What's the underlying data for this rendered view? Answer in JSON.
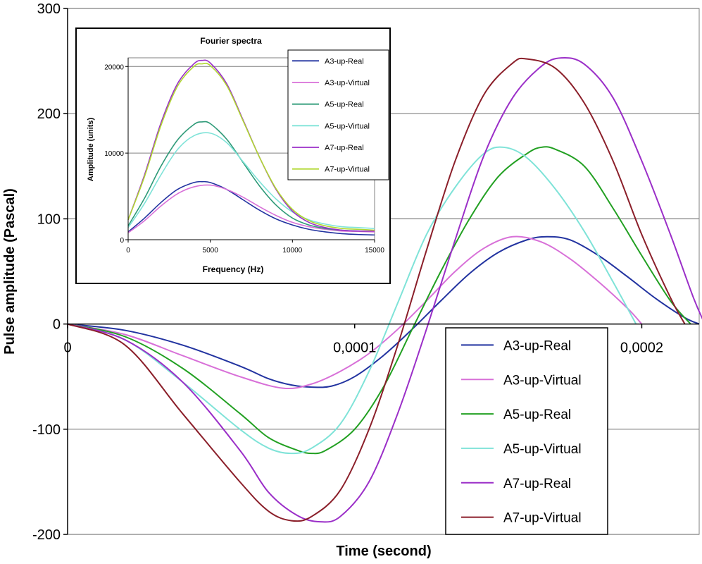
{
  "chart_data": [
    {
      "type": "line",
      "title": "",
      "xlabel": "Time (second)",
      "ylabel": "Pulse amplitude (Pascal)",
      "xlim": [
        0,
        0.00022
      ],
      "ylim": [
        -200,
        300
      ],
      "grid": "horizontal",
      "legend_position": "bottom-right",
      "x_tick_labels": [
        "0",
        "0,0001",
        "0,0002"
      ],
      "x_tick_values": [
        0,
        0.0001,
        0.0002
      ],
      "y_tick_labels": [
        "-200",
        "-100",
        "0",
        "100",
        "200",
        "300"
      ],
      "y_tick_values": [
        -200,
        -100,
        0,
        100,
        200,
        300
      ],
      "series": [
        {
          "name": "A3-up-Real",
          "color": "#2233a0",
          "points": [
            [
              0,
              0
            ],
            [
              2e-05,
              -6
            ],
            [
              4e-05,
              -20
            ],
            [
              6e-05,
              -40
            ],
            [
              7e-05,
              -52
            ],
            [
              7.8e-05,
              -58
            ],
            [
              8.5e-05,
              -60
            ],
            [
              9.2e-05,
              -59
            ],
            [
              0.0001,
              -50
            ],
            [
              0.00011,
              -30
            ],
            [
              0.00012,
              -5
            ],
            [
              0.00013,
              22
            ],
            [
              0.00014,
              48
            ],
            [
              0.00015,
              68
            ],
            [
              0.00016,
              80
            ],
            [
              0.000167,
              83
            ],
            [
              0.000175,
              80
            ],
            [
              0.000185,
              65
            ],
            [
              0.000195,
              45
            ],
            [
              0.000205,
              24
            ],
            [
              0.000215,
              6
            ],
            [
              0.00022,
              0
            ]
          ]
        },
        {
          "name": "A3-up-Virtual",
          "color": "#d870d8",
          "points": [
            [
              0,
              0
            ],
            [
              2e-05,
              -10
            ],
            [
              4e-05,
              -30
            ],
            [
              6e-05,
              -50
            ],
            [
              7.5e-05,
              -61
            ],
            [
              8.5e-05,
              -57
            ],
            [
              9.5e-05,
              -45
            ],
            [
              0.000105,
              -28
            ],
            [
              0.000115,
              -5
            ],
            [
              0.000125,
              22
            ],
            [
              0.000135,
              50
            ],
            [
              0.000145,
              72
            ],
            [
              0.000155,
              83
            ],
            [
              0.000165,
              78
            ],
            [
              0.000175,
              62
            ],
            [
              0.000185,
              40
            ],
            [
              0.000195,
              15
            ],
            [
              0.0002,
              0
            ]
          ]
        },
        {
          "name": "A5-up-Real",
          "color": "#22a022",
          "points": [
            [
              0,
              0
            ],
            [
              2e-05,
              -12
            ],
            [
              4e-05,
              -42
            ],
            [
              6e-05,
              -85
            ],
            [
              7e-05,
              -108
            ],
            [
              8e-05,
              -120
            ],
            [
              8.5e-05,
              -123
            ],
            [
              9e-05,
              -120
            ],
            [
              0.0001,
              -100
            ],
            [
              0.00011,
              -60
            ],
            [
              0.00012,
              -5
            ],
            [
              0.00013,
              50
            ],
            [
              0.00014,
              100
            ],
            [
              0.00015,
              140
            ],
            [
              0.00016,
              162
            ],
            [
              0.000165,
              168
            ],
            [
              0.00017,
              166
            ],
            [
              0.00018,
              150
            ],
            [
              0.00019,
              110
            ],
            [
              0.0002,
              65
            ],
            [
              0.00021,
              22
            ],
            [
              0.000217,
              0
            ]
          ]
        },
        {
          "name": "A5-up-Virtual",
          "color": "#7fe3d8",
          "points": [
            [
              0,
              0
            ],
            [
              2e-05,
              -15
            ],
            [
              4e-05,
              -55
            ],
            [
              6e-05,
              -100
            ],
            [
              7e-05,
              -118
            ],
            [
              7.8e-05,
              -123
            ],
            [
              8.5e-05,
              -118
            ],
            [
              9.5e-05,
              -95
            ],
            [
              0.000105,
              -45
            ],
            [
              0.000115,
              20
            ],
            [
              0.000125,
              85
            ],
            [
              0.000135,
              130
            ],
            [
              0.000145,
              162
            ],
            [
              0.000152,
              168
            ],
            [
              0.00016,
              158
            ],
            [
              0.00017,
              128
            ],
            [
              0.00018,
              88
            ],
            [
              0.00019,
              40
            ],
            [
              0.000198,
              0
            ]
          ]
        },
        {
          "name": "A7-up-Real",
          "color": "#9b2fc8",
          "points": [
            [
              0,
              0
            ],
            [
              2e-05,
              -15
            ],
            [
              4e-05,
              -55
            ],
            [
              6e-05,
              -120
            ],
            [
              7e-05,
              -160
            ],
            [
              8e-05,
              -182
            ],
            [
              8.8e-05,
              -188
            ],
            [
              9.5e-05,
              -183
            ],
            [
              0.000105,
              -150
            ],
            [
              0.000115,
              -85
            ],
            [
              0.000125,
              -5
            ],
            [
              0.000135,
              80
            ],
            [
              0.000145,
              160
            ],
            [
              0.000155,
              215
            ],
            [
              0.000165,
              245
            ],
            [
              0.000172,
              253
            ],
            [
              0.00018,
              247
            ],
            [
              0.00019,
              215
            ],
            [
              0.0002,
              155
            ],
            [
              0.00021,
              85
            ],
            [
              0.000218,
              25
            ],
            [
              0.000222,
              0
            ]
          ]
        },
        {
          "name": "A7-up-Virtual",
          "color": "#8b1f2a",
          "points": [
            [
              0,
              0
            ],
            [
              2e-05,
              -20
            ],
            [
              4e-05,
              -85
            ],
            [
              6e-05,
              -150
            ],
            [
              7e-05,
              -178
            ],
            [
              7.8e-05,
              -187
            ],
            [
              8.5e-05,
              -183
            ],
            [
              9.5e-05,
              -158
            ],
            [
              0.000105,
              -100
            ],
            [
              0.000115,
              -20
            ],
            [
              0.000125,
              70
            ],
            [
              0.000135,
              155
            ],
            [
              0.000145,
              218
            ],
            [
              0.000155,
              248
            ],
            [
              0.00016,
              252
            ],
            [
              0.00017,
              243
            ],
            [
              0.00018,
              210
            ],
            [
              0.00019,
              155
            ],
            [
              0.0002,
              85
            ],
            [
              0.00021,
              25
            ],
            [
              0.000215,
              0
            ]
          ]
        }
      ]
    },
    {
      "type": "line",
      "title": "Fourier spectra",
      "xlabel": "Frequency (Hz)",
      "ylabel": "Amplitude (units)",
      "xlim": [
        0,
        15000
      ],
      "ylim": [
        0,
        21000
      ],
      "grid": "horizontal",
      "legend_position": "top-right",
      "x_tick_labels": [
        "0",
        "5000",
        "10000",
        "15000"
      ],
      "x_tick_values": [
        0,
        5000,
        10000,
        15000
      ],
      "y_tick_labels": [
        "0",
        "10000",
        "20000"
      ],
      "y_tick_values": [
        0,
        10000,
        20000
      ],
      "series": [
        {
          "name": "A3-up-Real",
          "color": "#2233a0",
          "points": [
            [
              0,
              900
            ],
            [
              1000,
              2500
            ],
            [
              2000,
              4300
            ],
            [
              3000,
              5800
            ],
            [
              4000,
              6600
            ],
            [
              4500,
              6700
            ],
            [
              5000,
              6600
            ],
            [
              6000,
              5800
            ],
            [
              7000,
              4600
            ],
            [
              8000,
              3400
            ],
            [
              9000,
              2400
            ],
            [
              10000,
              1700
            ],
            [
              11000,
              1200
            ],
            [
              12000,
              900
            ],
            [
              13000,
              700
            ],
            [
              14000,
              600
            ],
            [
              15000,
              550
            ]
          ]
        },
        {
          "name": "A3-up-Virtual",
          "color": "#d870d8",
          "points": [
            [
              0,
              800
            ],
            [
              1000,
              2200
            ],
            [
              2000,
              3900
            ],
            [
              3000,
              5300
            ],
            [
              4000,
              6100
            ],
            [
              5000,
              6300
            ],
            [
              6000,
              5800
            ],
            [
              7000,
              4900
            ],
            [
              8000,
              3800
            ],
            [
              9000,
              2800
            ],
            [
              10000,
              2000
            ],
            [
              11000,
              1500
            ],
            [
              12000,
              1200
            ],
            [
              13000,
              1000
            ],
            [
              14000,
              950
            ],
            [
              15000,
              900
            ]
          ]
        },
        {
          "name": "A5-up-Real",
          "color": "#2e9a78",
          "points": [
            [
              0,
              1600
            ],
            [
              1000,
              4800
            ],
            [
              2000,
              8500
            ],
            [
              3000,
              11500
            ],
            [
              4000,
              13300
            ],
            [
              4500,
              13600
            ],
            [
              5000,
              13400
            ],
            [
              6000,
              11600
            ],
            [
              7000,
              8900
            ],
            [
              8000,
              6200
            ],
            [
              9000,
              4000
            ],
            [
              10000,
              2500
            ],
            [
              11000,
              1700
            ],
            [
              12000,
              1300
            ],
            [
              13000,
              1100
            ],
            [
              14000,
              1000
            ],
            [
              15000,
              1000
            ]
          ]
        },
        {
          "name": "A5-up-Virtual",
          "color": "#7fe3d8",
          "points": [
            [
              0,
              1400
            ],
            [
              1000,
              4200
            ],
            [
              2000,
              7500
            ],
            [
              3000,
              10400
            ],
            [
              4000,
              12000
            ],
            [
              5000,
              12300
            ],
            [
              6000,
              11200
            ],
            [
              7000,
              9000
            ],
            [
              8000,
              6700
            ],
            [
              9000,
              4700
            ],
            [
              10000,
              3200
            ],
            [
              11000,
              2300
            ],
            [
              12000,
              1800
            ],
            [
              13000,
              1500
            ],
            [
              14000,
              1400
            ],
            [
              15000,
              1300
            ]
          ]
        },
        {
          "name": "A7-up-Real",
          "color": "#9b2fc8",
          "points": [
            [
              0,
              2300
            ],
            [
              1000,
              7500
            ],
            [
              2000,
              13500
            ],
            [
              3000,
              18000
            ],
            [
              4000,
              20300
            ],
            [
              4500,
              20700
            ],
            [
              5000,
              20400
            ],
            [
              6000,
              18000
            ],
            [
              7000,
              13800
            ],
            [
              8000,
              9500
            ],
            [
              9000,
              5800
            ],
            [
              10000,
              3300
            ],
            [
              11000,
              2000
            ],
            [
              12000,
              1400
            ],
            [
              13000,
              1100
            ],
            [
              14000,
              1000
            ],
            [
              15000,
              1000
            ]
          ]
        },
        {
          "name": "A7-up-Virtual",
          "color": "#b0d830",
          "points": [
            [
              0,
              2300
            ],
            [
              1000,
              7300
            ],
            [
              2000,
              13200
            ],
            [
              3000,
              17700
            ],
            [
              4000,
              20000
            ],
            [
              4500,
              20300
            ],
            [
              5000,
              20100
            ],
            [
              6000,
              17800
            ],
            [
              7000,
              13700
            ],
            [
              8000,
              9500
            ],
            [
              9000,
              5900
            ],
            [
              10000,
              3500
            ],
            [
              11000,
              2200
            ],
            [
              12000,
              1600
            ],
            [
              13000,
              1300
            ],
            [
              14000,
              1200
            ],
            [
              15000,
              1100
            ]
          ]
        }
      ]
    }
  ]
}
